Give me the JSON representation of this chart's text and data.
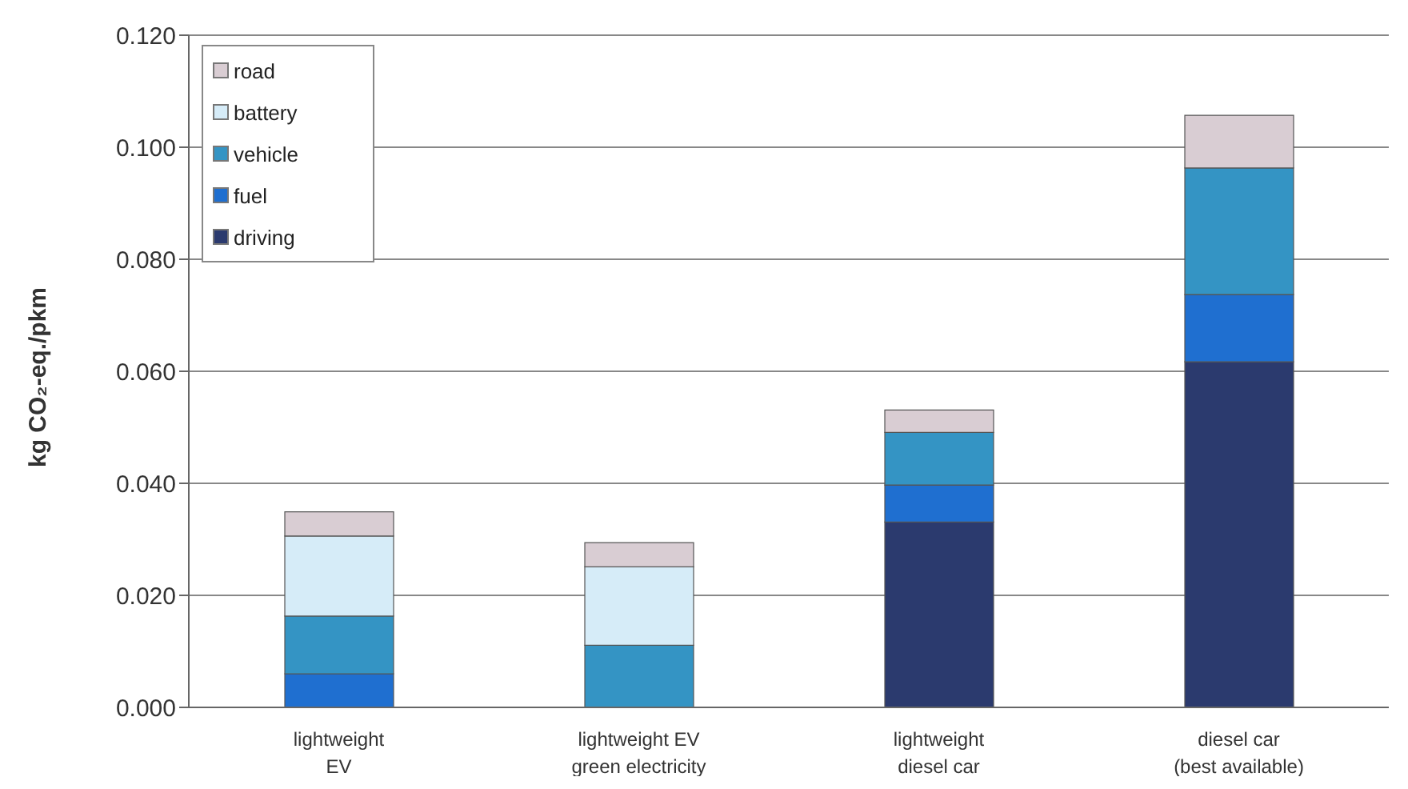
{
  "chart_data": {
    "type": "bar",
    "stacked": true,
    "ylabel": "kg CO₂-eq./pkm",
    "categories": [
      "lightweight\nEV",
      "lightweight EV\ngreen electricity",
      "lightweight\ndiesel car",
      "diesel car\n(best available)"
    ],
    "series": [
      {
        "name": "driving",
        "color": "#2b3a6e",
        "values": [
          0,
          0,
          0.0331,
          0.0617
        ]
      },
      {
        "name": "fuel",
        "color": "#1f6fd0",
        "values": [
          0.006,
          0,
          0.0066,
          0.012
        ]
      },
      {
        "name": "vehicle",
        "color": "#3494c4",
        "values": [
          0.0103,
          0.0111,
          0.0094,
          0.0226
        ]
      },
      {
        "name": "battery",
        "color": "#d6ecf8",
        "values": [
          0.0143,
          0.014,
          0,
          0
        ]
      },
      {
        "name": "road",
        "color": "#d9cdd3",
        "values": [
          0.0043,
          0.0043,
          0.004,
          0.0094
        ]
      }
    ],
    "ylim": [
      0,
      0.12
    ],
    "yticks": [
      {
        "value": 0,
        "label": "0.000"
      },
      {
        "value": 0.02,
        "label": "0.020"
      },
      {
        "value": 0.04,
        "label": "0.040"
      },
      {
        "value": 0.06,
        "label": "0.060"
      },
      {
        "value": 0.08,
        "label": "0.080"
      },
      {
        "value": 0.1,
        "label": "0.100"
      },
      {
        "value": 0.12,
        "label": "0.120"
      }
    ],
    "grid": "y",
    "legend": "top left"
  }
}
